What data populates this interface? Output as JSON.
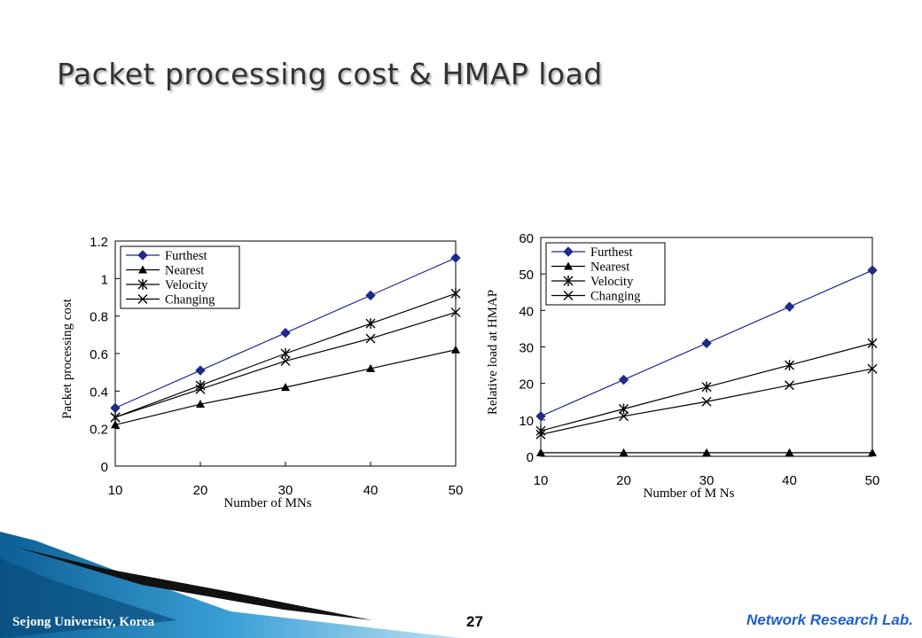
{
  "slide": {
    "title": "Packet processing cost & HMAP load",
    "footer_left": "Sejong University, Korea",
    "page_number": "27",
    "footer_right": "Network Research Lab."
  },
  "colors": {
    "furthest": "#1f2a8c",
    "other": "#000000",
    "decor_blue": "#2b8cc4"
  },
  "chart_data": [
    {
      "type": "line",
      "title": "",
      "xlabel": "Number of MNs",
      "ylabel": "Packet processing cost",
      "x": [
        10,
        20,
        30,
        40,
        50
      ],
      "xlim": [
        10,
        50
      ],
      "ylim": [
        0,
        1.2
      ],
      "yticks": [
        "0",
        "0.2",
        "0.4",
        "0.6",
        "0.8",
        "1",
        "1.2"
      ],
      "xticks": [
        "10",
        "20",
        "30",
        "40",
        "50"
      ],
      "legend_position": "top-left",
      "grid": false,
      "series": [
        {
          "name": "Furthest",
          "marker": "diamond",
          "values": [
            0.31,
            0.51,
            0.71,
            0.91,
            1.11
          ]
        },
        {
          "name": "Nearest",
          "marker": "triangle",
          "values": [
            0.22,
            0.33,
            0.42,
            0.52,
            0.62
          ]
        },
        {
          "name": "Velocity",
          "marker": "asterisk",
          "values": [
            0.26,
            0.43,
            0.6,
            0.76,
            0.92
          ]
        },
        {
          "name": "Changing",
          "marker": "x",
          "values": [
            0.26,
            0.41,
            0.56,
            0.68,
            0.82
          ]
        }
      ]
    },
    {
      "type": "line",
      "title": "",
      "xlabel": "Number of M Ns",
      "ylabel": "Relative load at HMAP",
      "x": [
        10,
        20,
        30,
        40,
        50
      ],
      "xlim": [
        10,
        50
      ],
      "ylim": [
        0,
        60
      ],
      "yticks": [
        "0",
        "10",
        "20",
        "30",
        "40",
        "50",
        "60"
      ],
      "xticks": [
        "10",
        "20",
        "30",
        "40",
        "50"
      ],
      "legend_position": "top-left",
      "grid": false,
      "series": [
        {
          "name": "Furthest",
          "marker": "diamond",
          "values": [
            11,
            21,
            31,
            41,
            51
          ]
        },
        {
          "name": "Nearest",
          "marker": "triangle",
          "values": [
            1,
            1,
            1,
            1,
            1
          ]
        },
        {
          "name": "Velocity",
          "marker": "asterisk",
          "values": [
            7,
            13,
            19,
            25,
            31
          ]
        },
        {
          "name": "Changing",
          "marker": "x",
          "values": [
            6,
            11,
            15,
            19.5,
            24
          ]
        }
      ]
    }
  ]
}
